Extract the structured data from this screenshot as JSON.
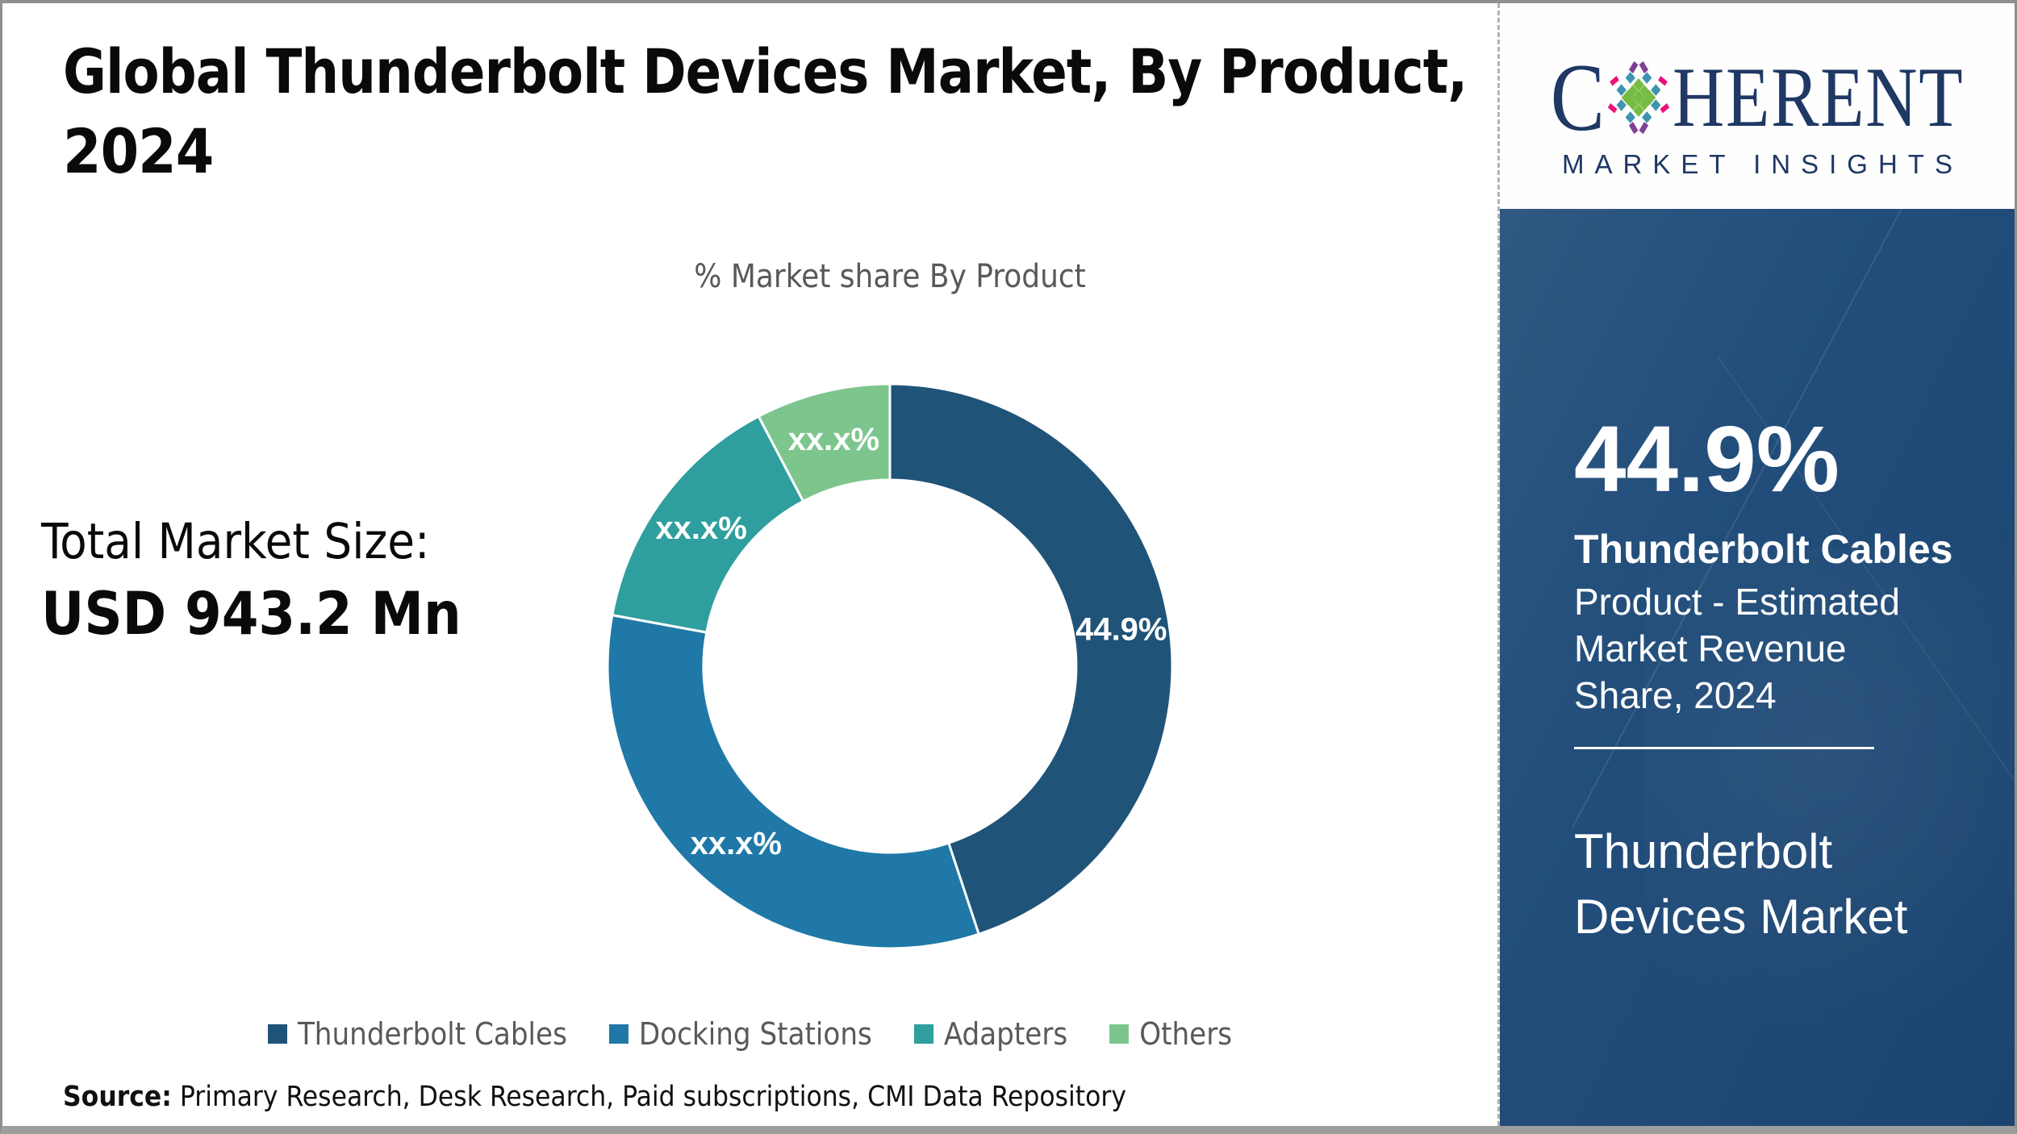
{
  "page": {
    "title_lines": [
      "Global Thunderbolt Devices Market, By Product,",
      "2024"
    ],
    "title_full": "Global Thunderbolt Devices Market, By Product, 2024",
    "source_label": "Source:",
    "source_text": "Primary Research, Desk Research, Paid subscriptions, CMI Data Repository"
  },
  "stats": {
    "total_label": "Total Market Size:",
    "total_value": "USD 943.2 Mn"
  },
  "chart_data": {
    "type": "pie",
    "subtype": "donut",
    "title": "% Market share By Product",
    "categories": [
      "Thunderbolt Cables",
      "Docking Stations",
      "Adapters",
      "Others"
    ],
    "slice_labels": [
      "44.9%",
      "xx.x%",
      "xx.x%",
      "xx.x%"
    ],
    "values_pct": [
      44.9,
      33.0,
      14.4,
      7.7
    ],
    "values_note": "Only 44.9% is printed on the chart; remaining slices are masked as xx.x% and their shares are estimated from arc angles",
    "colors": [
      "#205378",
      "#1F78A7",
      "#2F9E9E",
      "#7CC68E"
    ],
    "start_angle_deg": 0,
    "clockwise": true,
    "inner_radius_ratio": 0.66,
    "label_color": "#FFFFFF",
    "legend_position": "bottom"
  },
  "sidebar": {
    "stat_value": "44.9%",
    "stat_name": "Thunderbolt Cables",
    "stat_desc": "Product - Estimated Market Revenue Share, 2024",
    "panel_title": "Thunderbolt Devices Market",
    "bg_color": "#1E4A78"
  },
  "logo": {
    "brand_c": "C",
    "brand_rest": "HERENT",
    "tagline": "MARKET INSIGHTS",
    "navy": "#1F3864",
    "dot_colors": {
      "green": "#76BC43",
      "teal": "#3E93AE",
      "purple": "#7F3F97",
      "pink": "#EC1079"
    }
  }
}
